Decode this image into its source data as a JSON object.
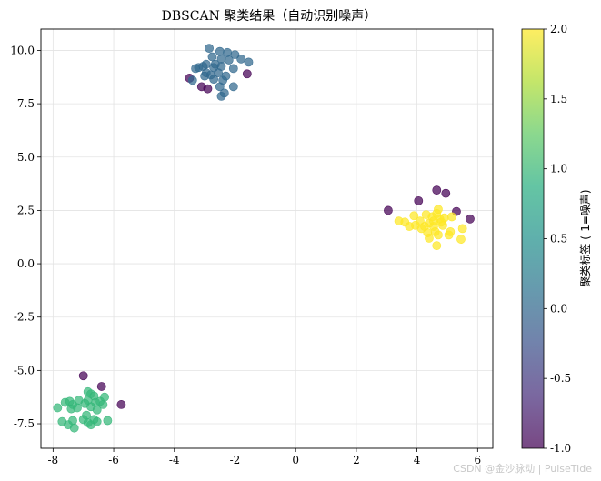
{
  "chart_data": {
    "type": "scatter",
    "title": "DBSCAN 聚类结果（自动识别噪声）",
    "xlabel": "",
    "ylabel": "",
    "xlim": [
      -8.4,
      6.5
    ],
    "ylim": [
      -8.65,
      11.0
    ],
    "xticks": [
      -8,
      -6,
      -4,
      -2,
      0,
      2,
      4,
      6
    ],
    "yticks": [
      -7.5,
      -5.0,
      -2.5,
      0.0,
      2.5,
      5.0,
      7.5,
      10.0
    ],
    "xtick_labels": [
      "-8",
      "-6",
      "-4",
      "-2",
      "0",
      "2",
      "4",
      "6"
    ],
    "ytick_labels": [
      "-7.5",
      "-5.0",
      "-2.5",
      "0.0",
      "2.5",
      "5.0",
      "7.5",
      "10.0"
    ],
    "grid": true,
    "colorbar": {
      "label": "聚类标签 (-1=噪声)",
      "range": [
        -1.0,
        2.0
      ],
      "ticks": [
        -1.0,
        -0.5,
        0.0,
        0.5,
        1.0,
        1.5,
        2.0
      ],
      "tick_labels": [
        "-1.0",
        "-0.5",
        "0.0",
        "0.5",
        "1.0",
        "1.5",
        "2.0"
      ],
      "colormap": "viridis"
    },
    "label_colors": {
      "-1": "#440154",
      "0": "#31688e",
      "1": "#35b779",
      "2": "#fde725"
    },
    "series": [
      {
        "label": -1,
        "points": [
          [
            -3.5,
            8.7
          ],
          [
            -3.1,
            8.3
          ],
          [
            -2.9,
            8.2
          ],
          [
            -1.6,
            8.9
          ],
          [
            3.05,
            2.5
          ],
          [
            4.05,
            2.95
          ],
          [
            4.65,
            3.45
          ],
          [
            4.95,
            3.3
          ],
          [
            5.3,
            2.45
          ],
          [
            5.75,
            2.1
          ],
          [
            -7.0,
            -5.25
          ],
          [
            -6.4,
            -5.75
          ],
          [
            -5.75,
            -6.6
          ]
        ]
      },
      {
        "label": 0,
        "points": [
          [
            -2.85,
            10.1
          ],
          [
            -2.5,
            9.95
          ],
          [
            -2.25,
            9.9
          ],
          [
            -2.0,
            9.8
          ],
          [
            -1.8,
            9.6
          ],
          [
            -1.55,
            9.45
          ],
          [
            -2.75,
            9.7
          ],
          [
            -2.45,
            9.6
          ],
          [
            -2.2,
            9.55
          ],
          [
            -2.95,
            9.35
          ],
          [
            -3.05,
            9.25
          ],
          [
            -3.2,
            9.2
          ],
          [
            -3.3,
            9.15
          ],
          [
            -2.7,
            9.2
          ],
          [
            -2.45,
            9.25
          ],
          [
            -2.65,
            9.35
          ],
          [
            -2.05,
            9.15
          ],
          [
            -2.95,
            8.95
          ],
          [
            -2.8,
            8.85
          ],
          [
            -2.55,
            8.95
          ],
          [
            -3.0,
            8.8
          ],
          [
            -2.3,
            8.8
          ],
          [
            -2.7,
            8.65
          ],
          [
            -2.4,
            8.6
          ],
          [
            -2.5,
            8.3
          ],
          [
            -2.35,
            8.0
          ],
          [
            -2.45,
            7.85
          ],
          [
            -2.05,
            8.3
          ],
          [
            -3.4,
            8.6
          ]
        ]
      },
      {
        "label": 1,
        "points": [
          [
            -7.85,
            -6.75
          ],
          [
            -7.6,
            -6.5
          ],
          [
            -7.45,
            -6.45
          ],
          [
            -7.35,
            -6.6
          ],
          [
            -7.15,
            -6.4
          ],
          [
            -7.4,
            -6.8
          ],
          [
            -7.2,
            -6.75
          ],
          [
            -6.85,
            -6.4
          ],
          [
            -6.95,
            -6.55
          ],
          [
            -6.75,
            -6.1
          ],
          [
            -6.65,
            -6.2
          ],
          [
            -6.85,
            -6.0
          ],
          [
            -6.6,
            -6.5
          ],
          [
            -6.75,
            -6.7
          ],
          [
            -6.55,
            -6.85
          ],
          [
            -6.45,
            -6.45
          ],
          [
            -6.3,
            -6.25
          ],
          [
            -6.35,
            -6.6
          ],
          [
            -7.7,
            -7.4
          ],
          [
            -7.5,
            -7.55
          ],
          [
            -7.35,
            -7.35
          ],
          [
            -7.3,
            -7.7
          ],
          [
            -7.0,
            -7.3
          ],
          [
            -6.85,
            -7.45
          ],
          [
            -6.75,
            -7.55
          ],
          [
            -6.65,
            -7.3
          ],
          [
            -6.55,
            -7.4
          ],
          [
            -6.2,
            -7.35
          ],
          [
            -6.9,
            -7.1
          ]
        ]
      },
      {
        "label": 2,
        "points": [
          [
            3.4,
            2.0
          ],
          [
            3.6,
            1.95
          ],
          [
            3.75,
            1.75
          ],
          [
            3.9,
            2.25
          ],
          [
            4.1,
            2.0
          ],
          [
            4.15,
            1.65
          ],
          [
            4.3,
            2.3
          ],
          [
            4.4,
            1.9
          ],
          [
            4.5,
            2.2
          ],
          [
            4.55,
            1.75
          ],
          [
            4.6,
            1.5
          ],
          [
            4.65,
            2.35
          ],
          [
            4.7,
            2.55
          ],
          [
            4.75,
            2.1
          ],
          [
            4.8,
            1.95
          ],
          [
            4.85,
            1.8
          ],
          [
            4.9,
            2.15
          ],
          [
            4.55,
            2.0
          ],
          [
            4.35,
            1.45
          ],
          [
            4.4,
            1.2
          ],
          [
            4.7,
            1.35
          ],
          [
            4.65,
            0.85
          ],
          [
            5.05,
            1.35
          ],
          [
            5.1,
            1.5
          ],
          [
            5.15,
            2.2
          ],
          [
            5.45,
            1.15
          ],
          [
            5.5,
            1.65
          ],
          [
            3.95,
            1.8
          ],
          [
            4.25,
            1.75
          ]
        ]
      }
    ]
  },
  "watermark": "CSDN @金沙脉动 | PulseTide"
}
